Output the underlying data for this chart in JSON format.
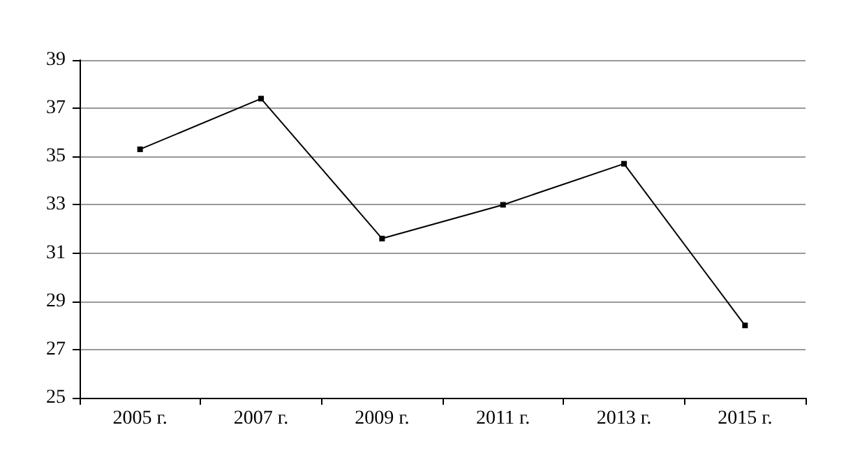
{
  "chart_data": {
    "type": "line",
    "categories": [
      "2005 г.",
      "2007 г.",
      "2009 г.",
      "2011 г.",
      "2013 г.",
      "2015 г."
    ],
    "series": [
      {
        "color": "#000000",
        "values": [
          35.3,
          37.4,
          31.6,
          33.0,
          34.7,
          28.0
        ]
      }
    ],
    "ylim": [
      25,
      39
    ],
    "yticks": [
      25,
      27,
      29,
      31,
      33,
      35,
      37,
      39
    ],
    "grid": "y",
    "marker": "square",
    "line_style": "solid"
  }
}
